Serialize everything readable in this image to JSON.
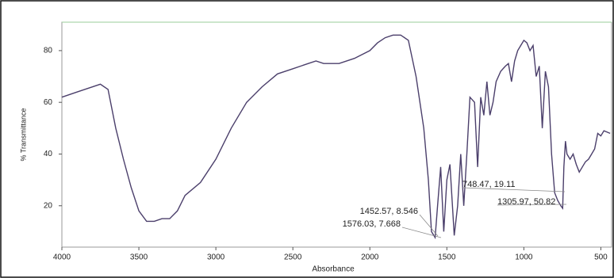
{
  "chart_data": {
    "type": "line",
    "x_label": "Absorbance",
    "y_label": "% Transmittance",
    "x": [
      4000,
      3900,
      3800,
      3750,
      3700,
      3650,
      3600,
      3550,
      3500,
      3450,
      3400,
      3350,
      3300,
      3250,
      3200,
      3100,
      3000,
      2900,
      2800,
      2700,
      2600,
      2500,
      2400,
      2350,
      2300,
      2200,
      2100,
      2000,
      1950,
      1900,
      1850,
      1800,
      1750,
      1700,
      1650,
      1620,
      1600,
      1576,
      1560,
      1540,
      1520,
      1500,
      1480,
      1452,
      1430,
      1410,
      1390,
      1370,
      1350,
      1320,
      1300,
      1280,
      1260,
      1240,
      1220,
      1200,
      1180,
      1150,
      1120,
      1100,
      1080,
      1060,
      1040,
      1020,
      1000,
      980,
      960,
      940,
      920,
      900,
      880,
      860,
      840,
      820,
      800,
      780,
      760,
      748,
      740,
      730,
      720,
      700,
      680,
      660,
      640,
      620,
      600,
      580,
      560,
      540,
      520,
      500,
      480,
      440
    ],
    "series": [
      {
        "color": "#4b3f6b",
        "values": [
          62,
          64,
          66,
          67,
          65,
          50,
          38,
          27,
          18,
          14,
          14,
          15,
          15,
          18,
          24,
          29,
          38,
          50,
          60,
          66,
          71,
          73,
          75,
          76,
          75,
          75,
          77,
          80,
          83,
          85,
          86,
          86,
          84,
          70,
          50,
          30,
          10,
          7.7,
          20,
          35,
          10,
          30,
          36,
          8.5,
          20,
          40,
          20,
          40,
          62,
          60,
          35,
          62,
          55,
          68,
          55,
          60,
          68,
          72,
          74,
          75,
          68,
          76,
          80,
          82,
          84,
          83,
          80,
          82,
          70,
          74,
          50,
          72,
          66,
          40,
          25,
          22,
          20,
          19,
          35,
          45,
          40,
          38,
          40,
          36,
          33,
          35,
          37,
          38,
          40,
          42,
          48,
          47,
          49,
          48
        ]
      }
    ],
    "xlim": [
      4000,
      430
    ],
    "ylim": [
      4,
      91
    ],
    "xticks": [
      4000,
      3500,
      3000,
      2500,
      2000,
      1500,
      1000,
      500
    ],
    "yticks": [
      20,
      40,
      60,
      80
    ],
    "annotations": [
      "1452.57, 8.546",
      "1576.03, 7.668",
      "748.47, 19.11",
      "1305.97, 50.82"
    ]
  }
}
